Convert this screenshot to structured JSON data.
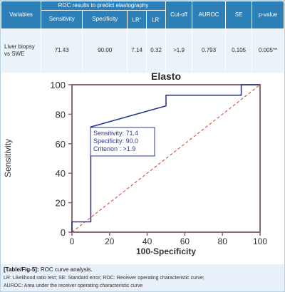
{
  "table": {
    "col_variables": "Variables",
    "group_header": "ROC results to predict elastography",
    "col_cutoff": "Cut-off",
    "col_auroc": "AUROC",
    "col_se": "SE",
    "col_pvalue": "p-value",
    "sub_sensitivity": "Sensitivity",
    "sub_specificity": "Specificity",
    "sub_lrplus": "LR",
    "sub_lrplus_sup": "+",
    "sub_lrminus": "LR",
    "sub_lrminus_sup": "-",
    "row": {
      "variable": "Liver biopsy vs SWE",
      "sensitivity": "71.43",
      "specificity": "90.00",
      "lr_plus": "7.14",
      "lr_minus": "0.32",
      "cutoff": ">1.9",
      "auroc": "0.793",
      "se": "0.105",
      "pvalue": "0.005**"
    }
  },
  "chart_data": {
    "type": "line",
    "title": "Elasto",
    "xlabel": "100-Specificity",
    "ylabel": "Sensitivity",
    "xlim": [
      0,
      100
    ],
    "ylim": [
      0,
      100
    ],
    "xticks": [
      0,
      20,
      40,
      60,
      80,
      100
    ],
    "yticks": [
      0,
      20,
      40,
      60,
      80,
      100
    ],
    "series": [
      {
        "values": [
          [
            0,
            0
          ],
          [
            0,
            7
          ],
          [
            10,
            7
          ],
          [
            10,
            71.4
          ],
          [
            50,
            85.7
          ],
          [
            50,
            92.9
          ],
          [
            90,
            92.9
          ],
          [
            90,
            100
          ],
          [
            100,
            100
          ]
        ],
        "color": "#2b3a8c"
      },
      {
        "values": [
          [
            0,
            0
          ],
          [
            100,
            100
          ]
        ],
        "color": "#d23a2a",
        "style": "dashed"
      }
    ],
    "annotation": [
      "Sensitivity: 71.4",
      "Specificity: 90.0",
      "Criterion : >1.9"
    ]
  },
  "caption": {
    "label": "[Table/Fig-5]:",
    "title": "ROC curve analysis.",
    "footnote_line1": "LR: Likelihood ratio test; SE: Standard error; ROC: Receiver operating characteristic curve;",
    "footnote_line2": "AUROC: Area under the receiver operating characteristic curve"
  },
  "colors": {
    "header_bg": "#2d7fb8",
    "cell_bg": "#eaf3fa",
    "curve": "#2b3a8c",
    "diagonal": "#d23a2a",
    "caption_bg": "#e8f1f9"
  }
}
